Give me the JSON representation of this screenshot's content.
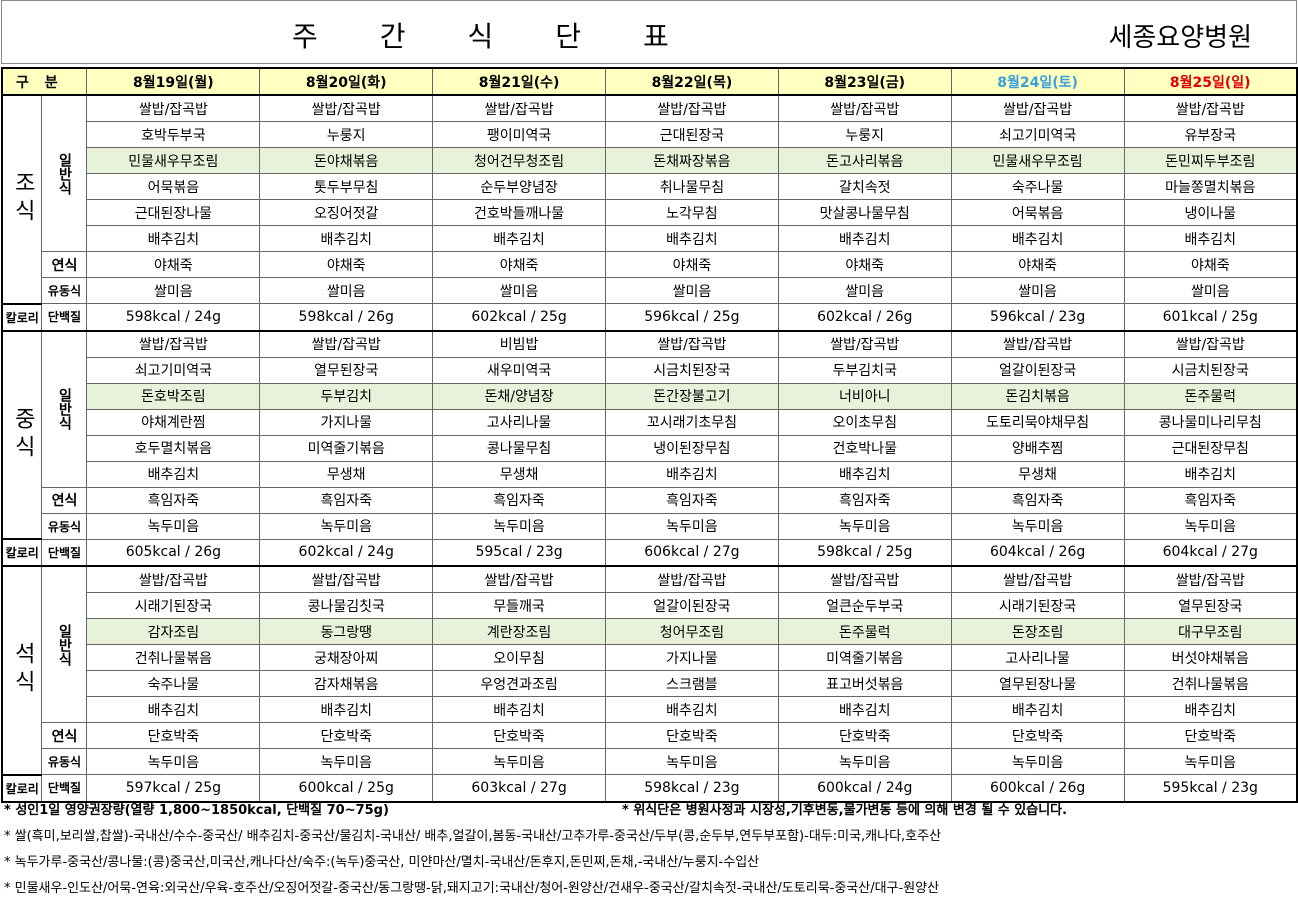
{
  "header": {
    "title": "주간식단표",
    "hospital": "세종요양병원"
  },
  "table": {
    "corner": "구분",
    "days": [
      "8월19일(월)",
      "8월20일(화)",
      "8월21일(수)",
      "8월22일(목)",
      "8월23일(금)",
      "8월24일(토)",
      "8월25일(일)"
    ],
    "meals": [
      {
        "name": "조식",
        "general_label": "일반식",
        "general": [
          [
            "쌀밥/잡곡밥",
            "쌀밥/잡곡밥",
            "쌀밥/잡곡밥",
            "쌀밥/잡곡밥",
            "쌀밥/잡곡밥",
            "쌀밥/잡곡밥",
            "쌀밥/잡곡밥"
          ],
          [
            "호박두부국",
            "누룽지",
            "팽이미역국",
            "근대된장국",
            "누룽지",
            "쇠고기미역국",
            "유부장국"
          ],
          [
            "민물새우무조림",
            "돈야채볶음",
            "청어건무청조림",
            "돈채짜장볶음",
            "돈고사리볶음",
            "민물새우무조림",
            "돈민찌두부조림"
          ],
          [
            "어묵볶음",
            "톳두부무침",
            "순두부양념장",
            "취나물무침",
            "갈치속젓",
            "숙주나물",
            "마늘쫑멸치볶음"
          ],
          [
            "근대된장나물",
            "오징어젓갈",
            "건호박들깨나물",
            "노각무침",
            "맛살콩나물무침",
            "어묵볶음",
            "냉이나물"
          ],
          [
            "배추김치",
            "배추김치",
            "배추김치",
            "배추김치",
            "배추김치",
            "배추김치",
            "배추김치"
          ]
        ],
        "soft_label": "연식",
        "soft": [
          "야채죽",
          "야채죽",
          "야채죽",
          "야채죽",
          "야채죽",
          "야채죽",
          "야채죽"
        ],
        "liquid_label": "유동식",
        "liquid": [
          "쌀미음",
          "쌀미음",
          "쌀미음",
          "쌀미음",
          "쌀미음",
          "쌀미음",
          "쌀미음"
        ],
        "calorie_label": "칼로리",
        "protein_label": "단백질",
        "nutrition": [
          "598kcal / 24g",
          "598kcal / 26g",
          "602kcal / 25g",
          "596kcal / 25g",
          "602kcal / 26g",
          "596kcal / 23g",
          "601kcal / 25g"
        ]
      },
      {
        "name": "중식",
        "general_label": "일반식",
        "general": [
          [
            "쌀밥/잡곡밥",
            "쌀밥/잡곡밥",
            "비빔밥",
            "쌀밥/잡곡밥",
            "쌀밥/잡곡밥",
            "쌀밥/잡곡밥",
            "쌀밥/잡곡밥"
          ],
          [
            "쇠고기미역국",
            "열무된장국",
            "새우미역국",
            "시금치된장국",
            "두부김치국",
            "얼갈이된장국",
            "시금치된장국"
          ],
          [
            "돈호박조림",
            "두부김치",
            "돈채/양념장",
            "돈간장불고기",
            "너비아니",
            "돈김치볶음",
            "돈주물럭"
          ],
          [
            "야채계란찜",
            "가지나물",
            "고사리나물",
            "꼬시래기초무침",
            "오이초무침",
            "도토리묵야채무침",
            "콩나물미나리무침"
          ],
          [
            "호두멸치볶음",
            "미역줄기볶음",
            "콩나물무침",
            "냉이된장무침",
            "건호박나물",
            "양배추찜",
            "근대된장무침"
          ],
          [
            "배추김치",
            "무생채",
            "무생채",
            "배추김치",
            "배추김치",
            "무생채",
            "배추김치"
          ]
        ],
        "soft_label": "연식",
        "soft": [
          "흑임자죽",
          "흑임자죽",
          "흑임자죽",
          "흑임자죽",
          "흑임자죽",
          "흑임자죽",
          "흑임자죽"
        ],
        "liquid_label": "유동식",
        "liquid": [
          "녹두미음",
          "녹두미음",
          "녹두미음",
          "녹두미음",
          "녹두미음",
          "녹두미음",
          "녹두미음"
        ],
        "calorie_label": "칼로리",
        "protein_label": "단백질",
        "nutrition": [
          "605kcal / 26g",
          "602kcal / 24g",
          "595cal / 23g",
          "606kcal / 27g",
          "598kcal / 25g",
          "604kcal / 26g",
          "604kcal / 27g"
        ]
      },
      {
        "name": "석식",
        "general_label": "일반식",
        "general": [
          [
            "쌀밥/잡곡밥",
            "쌀밥/잡곡밥",
            "쌀밥/잡곡밥",
            "쌀밥/잡곡밥",
            "쌀밥/잡곡밥",
            "쌀밥/잡곡밥",
            "쌀밥/잡곡밥"
          ],
          [
            "시래기된장국",
            "콩나물김칫국",
            "무들깨국",
            "얼갈이된장국",
            "얼큰순두부국",
            "시래기된장국",
            "열무된장국"
          ],
          [
            "감자조림",
            "동그랑땡",
            "계란장조림",
            "청어무조림",
            "돈주물럭",
            "돈장조림",
            "대구무조림"
          ],
          [
            "건취나물볶음",
            "궁채장아찌",
            "오이무침",
            "가지나물",
            "미역줄기볶음",
            "고사리나물",
            "버섯야채볶음"
          ],
          [
            "숙주나물",
            "감자채볶음",
            "우엉견과조림",
            "스크램블",
            "표고버섯볶음",
            "열무된장나물",
            "건취나물볶음"
          ],
          [
            "배추김치",
            "배추김치",
            "배추김치",
            "배추김치",
            "배추김치",
            "배추김치",
            "배추김치"
          ]
        ],
        "soft_label": "연식",
        "soft": [
          "단호박죽",
          "단호박죽",
          "단호박죽",
          "단호박죽",
          "단호박죽",
          "단호박죽",
          "단호박죽"
        ],
        "liquid_label": "유동식",
        "liquid": [
          "녹두미음",
          "녹두미음",
          "녹두미음",
          "녹두미음",
          "녹두미음",
          "녹두미음",
          "녹두미음"
        ],
        "calorie_label": "칼로리",
        "protein_label": "단백질",
        "nutrition": [
          "597kcal / 25g",
          "600kcal / 25g",
          "603kcal / 27g",
          "598kcal / 23g",
          "600kcal / 24g",
          "600kcal / 26g",
          "595kcal / 23g"
        ]
      }
    ]
  },
  "notes": {
    "recommended": "* 성인1일 영양권장량(열량 1,800~1850kcal, 단백질 70~75g)",
    "change": "* 위식단은 병원사정과 시장성,기후변동,물가변동 등에 의해 변경 될 수 있습니다.",
    "origin": [
      "* 쌀(흑미,보리쌀,찹쌀)-국내산/수수-중국산/ 배추김치-중국산/물김치-국내산/ 배추,얼갈이,봄동-국내산/고추가루-중국산/두부(콩,순두부,연두부포함)-대두:미국,캐나다,호주산",
      "* 녹두가루-중국산/콩나물:(콩)중국산,미국산,캐나다산/숙주:(녹두)중국산, 미얀마산/멸치-국내산/돈후지,돈민찌,돈채,-국내산/누룽지-수입산",
      "* 민물새우-인도산/어묵-연육:외국산/우육-호주산/오징어젓갈-중국산/동그랑땡-닭,돼지고기:국내산/청어-원양산/건새우-중국산/갈치속젓-국내산/도토리묵-중국산/대구-원양산"
    ]
  }
}
